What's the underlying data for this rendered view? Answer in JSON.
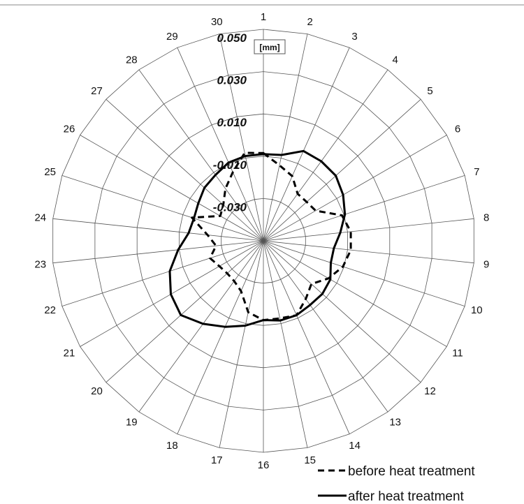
{
  "chart_data": {
    "type": "radar",
    "categories": [
      "1",
      "2",
      "3",
      "4",
      "5",
      "6",
      "7",
      "8",
      "9",
      "10",
      "11",
      "12",
      "13",
      "14",
      "15",
      "16",
      "17",
      "18",
      "19",
      "20",
      "21",
      "22",
      "23",
      "24",
      "25",
      "26",
      "27",
      "28",
      "29",
      "30"
    ],
    "radial_axis": {
      "unit": "[mm]",
      "range": [
        -0.05,
        0.05
      ],
      "tick_labels": [
        "0.050",
        "0.030",
        "0.010",
        "-0.010",
        "-0.030"
      ],
      "rings": 5
    },
    "grid": true,
    "legend_position": "bottom-right",
    "series": [
      {
        "name": "before heat treatment",
        "style": "dashed",
        "color": "#000000",
        "values": [
          -0.0085,
          -0.0135,
          -0.0165,
          -0.0225,
          -0.0225,
          -0.0215,
          -0.011,
          -0.0085,
          -0.0085,
          -0.0105,
          -0.0145,
          -0.0195,
          -0.016,
          -0.0115,
          -0.0125,
          -0.0125,
          -0.0155,
          -0.024,
          -0.0265,
          -0.027,
          -0.026,
          -0.0235,
          -0.0275,
          -0.0235,
          -0.0145,
          -0.0265,
          -0.0245,
          -0.0195,
          -0.0145,
          -0.0075
        ]
      },
      {
        "name": "after heat treatment",
        "style": "solid",
        "color": "#000000",
        "values": [
          -0.009,
          -0.0085,
          -0.0035,
          -0.0035,
          -0.004,
          -0.0065,
          -0.0095,
          -0.0135,
          -0.0165,
          -0.0165,
          -0.0135,
          -0.0125,
          -0.0125,
          -0.0115,
          -0.0115,
          -0.0125,
          -0.009,
          -0.0055,
          -0.0015,
          0.0025,
          0.0005,
          -0.0035,
          -0.0095,
          -0.0145,
          -0.0155,
          -0.0145,
          -0.0125,
          -0.0115,
          -0.0095,
          -0.009
        ]
      }
    ]
  }
}
